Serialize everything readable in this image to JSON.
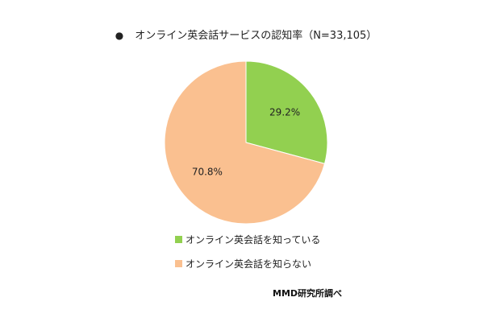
{
  "chart_data": {
    "type": "pie",
    "title": "オンライン英会話サービスの認知率（N=33,105）",
    "title_bullet": "●",
    "categories": [
      "オンライン英会話を知っている",
      "オンライン英会話を知らない"
    ],
    "values": [
      29.2,
      70.8
    ],
    "value_labels": [
      "29.2%",
      "70.8%"
    ],
    "colors": [
      "#92d050",
      "#fac090"
    ],
    "legend_position": "bottom",
    "source": "MMD研究所調べ"
  }
}
